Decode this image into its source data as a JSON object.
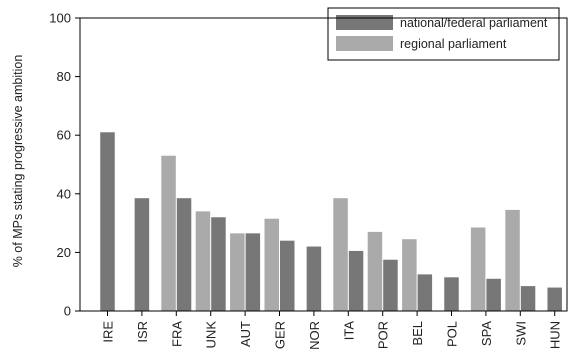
{
  "chart_data": {
    "type": "bar",
    "ylabel": "% of MPs stating progressive ambition",
    "xlabel": "",
    "ylim": [
      0,
      100
    ],
    "yticks": [
      0,
      20,
      40,
      60,
      80,
      100
    ],
    "grid": false,
    "legend_position": "top-right",
    "categories": [
      "IRE",
      "ISR",
      "FRA",
      "UNK",
      "AUT",
      "GER",
      "NOR",
      "ITA",
      "POR",
      "BEL",
      "POL",
      "SPA",
      "SWI",
      "HUN"
    ],
    "series": [
      {
        "name": "national/federal parliament",
        "color": "#777777",
        "values": [
          61,
          38.5,
          38.5,
          32,
          26.5,
          24,
          22,
          20.5,
          17.5,
          12.5,
          11.5,
          11,
          8.5,
          8
        ]
      },
      {
        "name": "regional parliament",
        "color": "#aaaaaa",
        "values": [
          null,
          null,
          53,
          34,
          26.5,
          31.5,
          null,
          38.5,
          27,
          24.5,
          null,
          28.5,
          34.5,
          null
        ]
      }
    ]
  }
}
